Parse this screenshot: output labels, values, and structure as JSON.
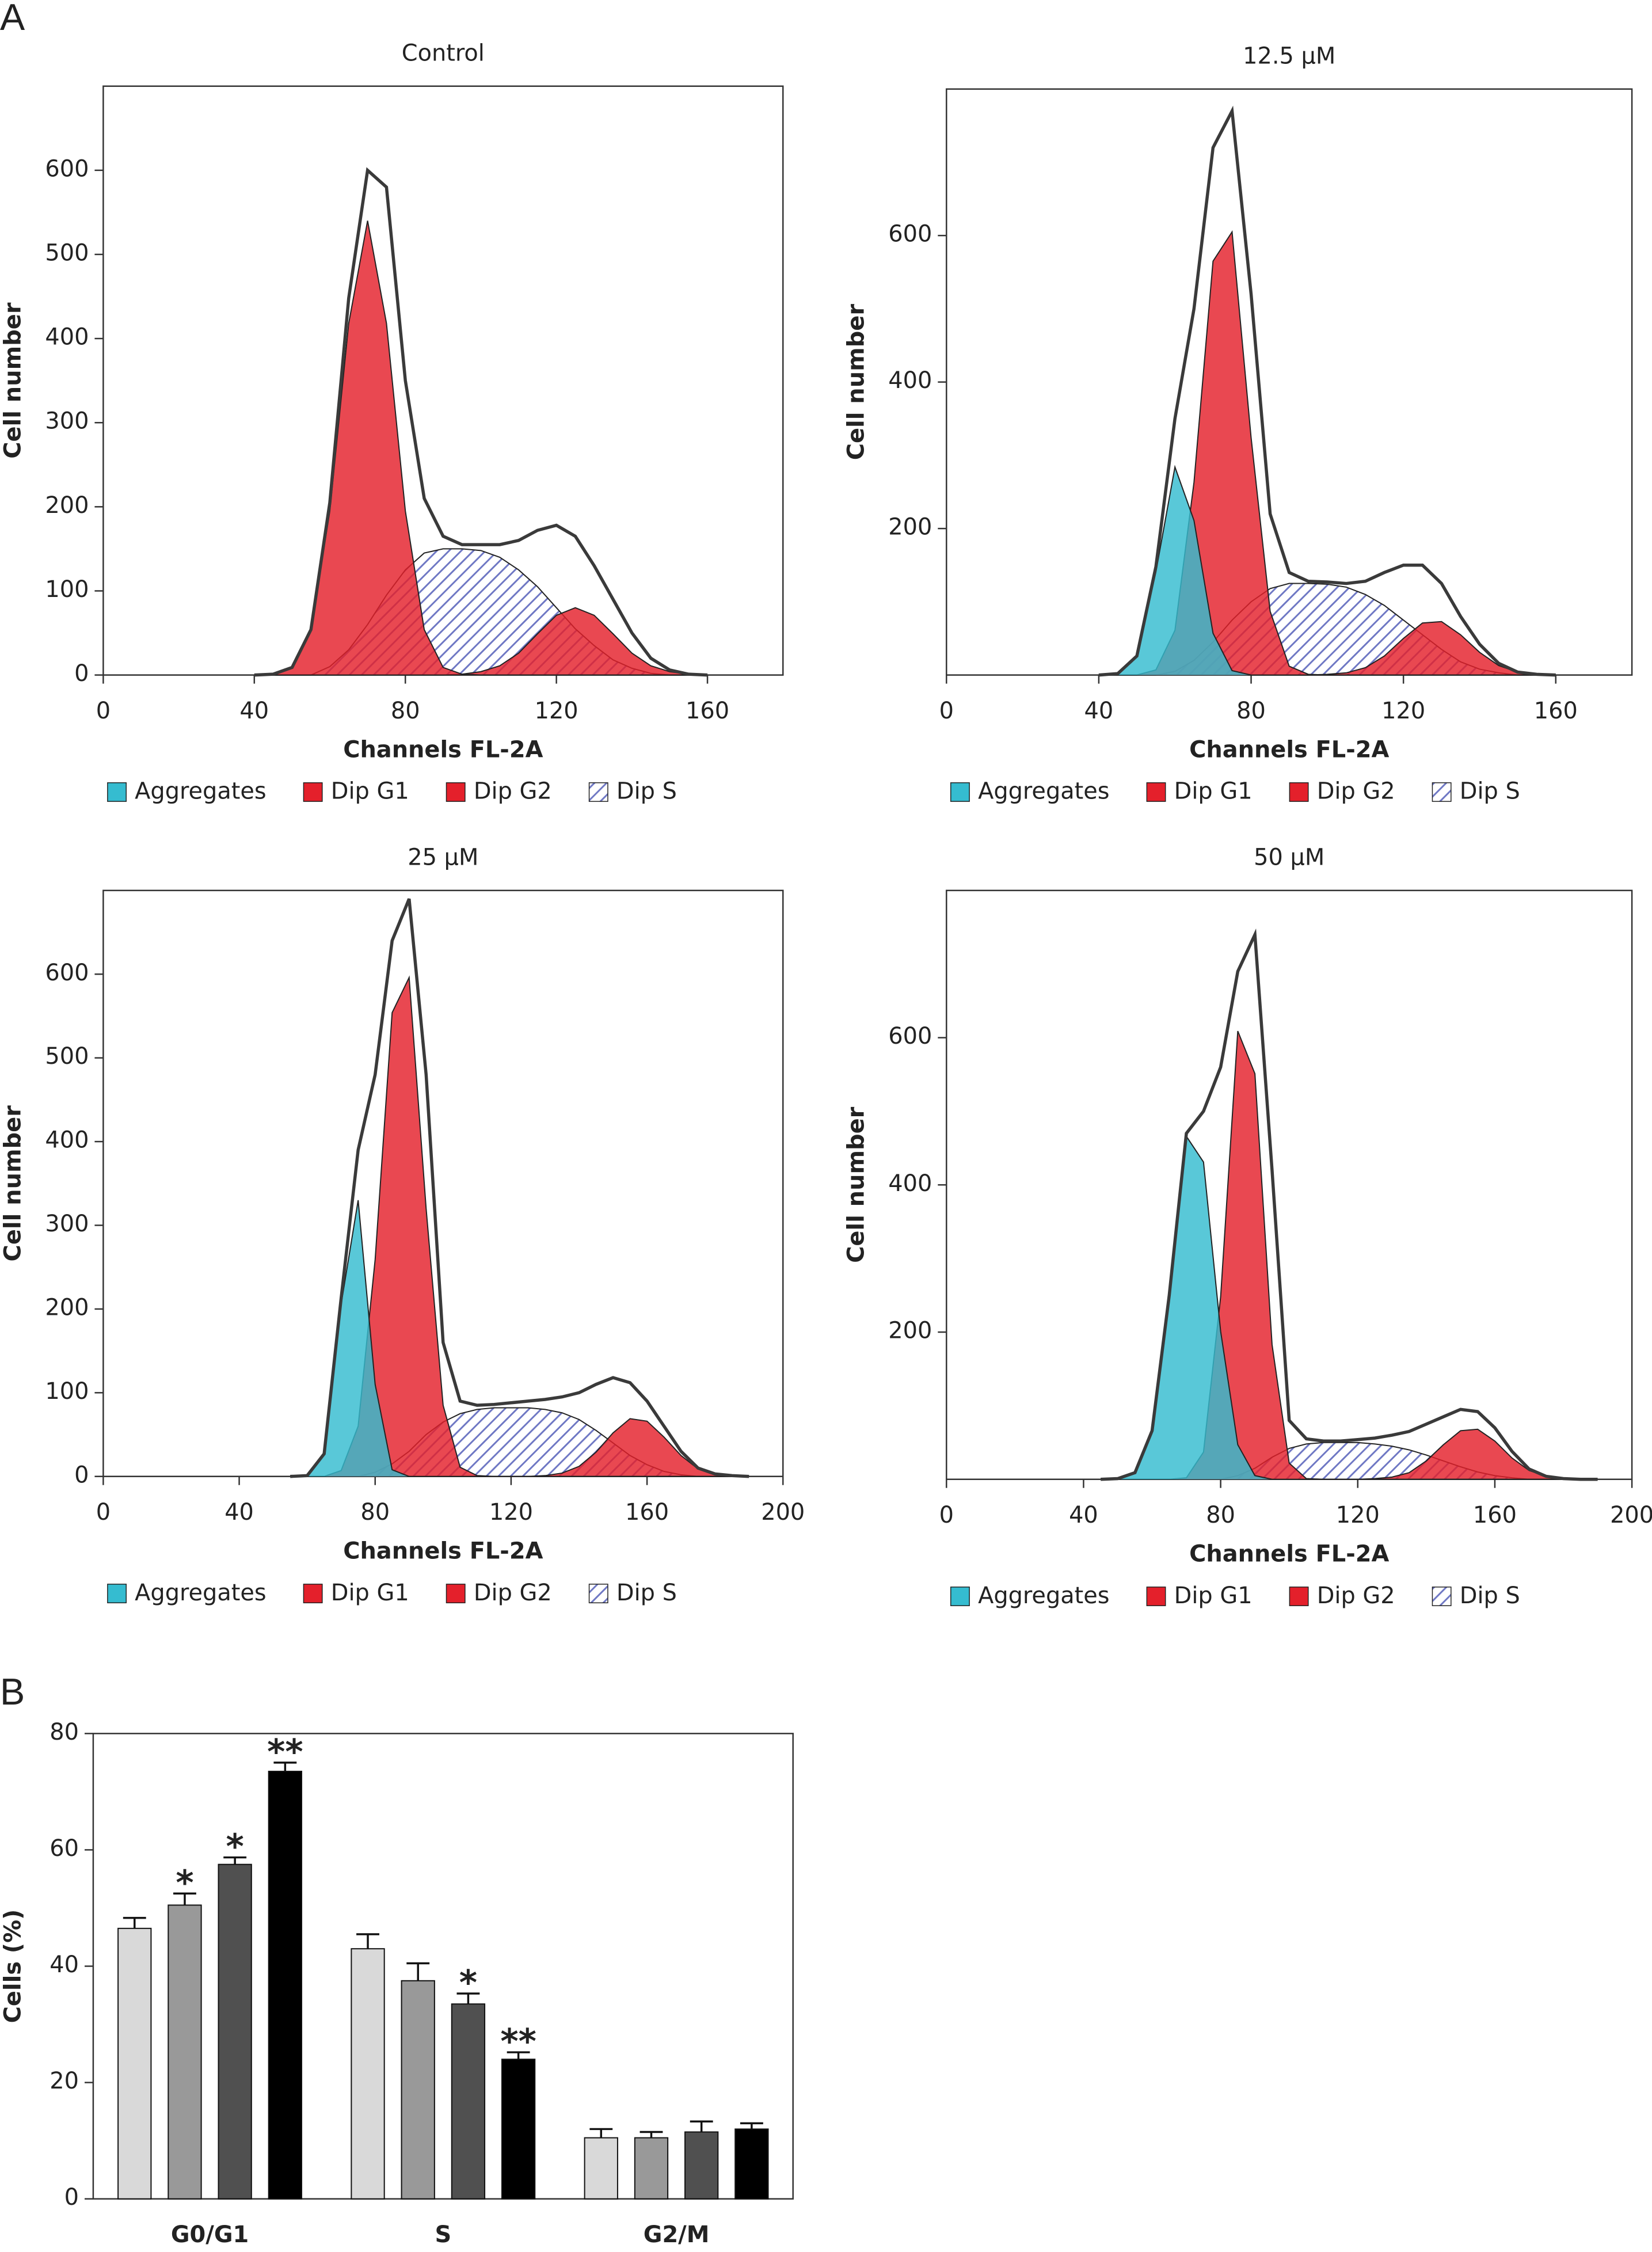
{
  "panel_labels": [
    "A",
    "B"
  ],
  "chart_data": [
    {
      "type": "flow",
      "title": "Control",
      "xlabel": "Channels FL-2A",
      "ylabel": "Cell number",
      "xlim": [
        0,
        180
      ],
      "xticks": [
        0,
        40,
        80,
        120,
        160
      ],
      "ylim": [
        0,
        700
      ],
      "yticks": [
        0,
        100,
        200,
        300,
        400,
        500,
        600
      ],
      "x": [
        40,
        45,
        50,
        55,
        60,
        65,
        70,
        75,
        80,
        85,
        90,
        95,
        100,
        105,
        110,
        115,
        120,
        125,
        130,
        135,
        140,
        145,
        150,
        155,
        160
      ],
      "series": [
        {
          "name": "Aggregates",
          "color": "#35bcd0",
          "mark": "area",
          "values": [
            0,
            0,
            0,
            0,
            0,
            0,
            0,
            0,
            0,
            0,
            0,
            0,
            0,
            0,
            0,
            0,
            0,
            0,
            0,
            0,
            0,
            0,
            0,
            0,
            0
          ]
        },
        {
          "name": "Dip G1",
          "color": "#e4202b",
          "mark": "area",
          "values": [
            0,
            1,
            9,
            54,
            195,
            418,
            540,
            418,
            195,
            54,
            9,
            1,
            0,
            0,
            0,
            0,
            0,
            0,
            0,
            0,
            0,
            0,
            0,
            0,
            0
          ]
        },
        {
          "name": "Dip G2",
          "color": "#e4202b",
          "mark": "area",
          "values": [
            0,
            0,
            0,
            0,
            0,
            0,
            0,
            0,
            0,
            0,
            0,
            1,
            4,
            11,
            26,
            49,
            71,
            80,
            71,
            49,
            26,
            11,
            4,
            1,
            0
          ]
        },
        {
          "name": "Dip S",
          "color": "#6f78c4",
          "mark": "hatch",
          "values": [
            0,
            0,
            0,
            0,
            10,
            30,
            60,
            95,
            125,
            145,
            150,
            150,
            148,
            140,
            125,
            105,
            80,
            55,
            35,
            18,
            8,
            2,
            0,
            0,
            0
          ]
        },
        {
          "color": "#3a3a3a",
          "mark": "line",
          "values": [
            0,
            1,
            9,
            54,
            205,
            448,
            600,
            580,
            350,
            210,
            165,
            155,
            155,
            155,
            160,
            172,
            178,
            165,
            130,
            90,
            50,
            20,
            6,
            1,
            0
          ]
        }
      ]
    },
    {
      "type": "flow",
      "title": "12.5 µM",
      "xlabel": "Channels FL-2A",
      "ylabel": "Cell number",
      "xlim": [
        0,
        180
      ],
      "xticks": [
        0,
        40,
        80,
        120,
        160
      ],
      "ylim": [
        0,
        800
      ],
      "yticks": [
        200,
        400,
        600
      ],
      "x": [
        40,
        45,
        50,
        55,
        60,
        65,
        70,
        75,
        80,
        85,
        90,
        95,
        100,
        105,
        110,
        115,
        120,
        125,
        130,
        135,
        140,
        145,
        150,
        155,
        160
      ],
      "series": [
        {
          "name": "Aggregates",
          "color": "#35bcd0",
          "mark": "area",
          "values": [
            0,
            2,
            26,
            141,
            284,
            211,
            57,
            6,
            0,
            0,
            0,
            0,
            0,
            0,
            0,
            0,
            0,
            0,
            0,
            0,
            0,
            0,
            0,
            0,
            0
          ]
        },
        {
          "name": "Dip G1",
          "color": "#e4202b",
          "mark": "area",
          "values": [
            0,
            0,
            0,
            7,
            61,
            263,
            565,
            605,
            324,
            87,
            12,
            1,
            0,
            0,
            0,
            0,
            0,
            0,
            0,
            0,
            0,
            0,
            0,
            0,
            0
          ]
        },
        {
          "name": "Dip G2",
          "color": "#e4202b",
          "mark": "area",
          "values": [
            0,
            0,
            0,
            0,
            0,
            0,
            0,
            0,
            0,
            0,
            0,
            0,
            1,
            3,
            10,
            26,
            50,
            71,
            73,
            55,
            31,
            13,
            4,
            1,
            0
          ]
        },
        {
          "name": "Dip S",
          "color": "#6f78c4",
          "mark": "hatch",
          "values": [
            0,
            0,
            0,
            0,
            5,
            20,
            45,
            75,
            100,
            118,
            125,
            125,
            124,
            120,
            110,
            95,
            75,
            55,
            35,
            18,
            8,
            3,
            0,
            0,
            0
          ]
        },
        {
          "color": "#3a3a3a",
          "mark": "line",
          "values": [
            0,
            2,
            26,
            148,
            350,
            500,
            720,
            770,
            520,
            220,
            140,
            128,
            127,
            125,
            128,
            140,
            150,
            150,
            125,
            80,
            42,
            16,
            4,
            1,
            0
          ]
        }
      ]
    },
    {
      "type": "flow",
      "title": "25 µM",
      "xlabel": "Channels FL-2A",
      "ylabel": "Cell number",
      "xlim": [
        0,
        200
      ],
      "xticks": [
        0,
        40,
        80,
        120,
        160,
        200
      ],
      "ylim": [
        0,
        700
      ],
      "yticks": [
        0,
        100,
        200,
        300,
        400,
        500,
        600
      ],
      "x": [
        55,
        60,
        65,
        70,
        75,
        80,
        85,
        90,
        95,
        100,
        105,
        110,
        115,
        120,
        125,
        130,
        135,
        140,
        145,
        150,
        155,
        160,
        165,
        170,
        175,
        180,
        185,
        190
      ],
      "series": [
        {
          "name": "Aggregates",
          "color": "#35bcd0",
          "mark": "area",
          "values": [
            0,
            1,
            27,
            206,
            330,
            110,
            8,
            0,
            0,
            0,
            0,
            0,
            0,
            0,
            0,
            0,
            0,
            0,
            0,
            0,
            0,
            0,
            0,
            0,
            0,
            0,
            0,
            0
          ]
        },
        {
          "name": "Dip G1",
          "color": "#e4202b",
          "mark": "area",
          "values": [
            0,
            0,
            0,
            7,
            60,
            259,
            554,
            596,
            320,
            85,
            11,
            1,
            0,
            0,
            0,
            0,
            0,
            0,
            0,
            0,
            0,
            0,
            0,
            0,
            0,
            0,
            0,
            0
          ]
        },
        {
          "name": "Dip G2",
          "color": "#e4202b",
          "mark": "area",
          "values": [
            0,
            0,
            0,
            0,
            0,
            0,
            0,
            0,
            0,
            0,
            0,
            0,
            0,
            0,
            0,
            1,
            4,
            12,
            29,
            52,
            69,
            66,
            47,
            25,
            9,
            3,
            1,
            0
          ]
        },
        {
          "name": "Dip S",
          "color": "#6f78c4",
          "mark": "hatch",
          "values": [
            0,
            0,
            0,
            0,
            0,
            5,
            15,
            30,
            50,
            65,
            75,
            80,
            82,
            82,
            82,
            80,
            76,
            68,
            55,
            40,
            25,
            14,
            6,
            2,
            0,
            0,
            0,
            0
          ]
        },
        {
          "color": "#3a3a3a",
          "mark": "line",
          "values": [
            0,
            1,
            27,
            213,
            390,
            480,
            640,
            690,
            480,
            160,
            90,
            85,
            86,
            88,
            90,
            92,
            95,
            100,
            110,
            118,
            112,
            90,
            60,
            30,
            10,
            3,
            1,
            0
          ]
        }
      ]
    },
    {
      "type": "flow",
      "title": "50 µM",
      "xlabel": "Channels FL-2A",
      "ylabel": "Cell number",
      "xlim": [
        0,
        200
      ],
      "xticks": [
        0,
        40,
        80,
        120,
        160,
        200
      ],
      "ylim": [
        0,
        800
      ],
      "yticks": [
        200,
        400,
        600
      ],
      "x": [
        45,
        50,
        55,
        60,
        65,
        70,
        75,
        80,
        85,
        90,
        95,
        100,
        105,
        110,
        115,
        120,
        125,
        130,
        135,
        140,
        145,
        150,
        155,
        160,
        165,
        170,
        175,
        180,
        185,
        190
      ],
      "series": [
        {
          "name": "Aggregates",
          "color": "#35bcd0",
          "mark": "area",
          "values": [
            0,
            1,
            9,
            66,
            250,
            466,
            431,
            201,
            47,
            5,
            0,
            0,
            0,
            0,
            0,
            0,
            0,
            0,
            0,
            0,
            0,
            0,
            0,
            0,
            0,
            0,
            0,
            0,
            0,
            0
          ]
        },
        {
          "name": "Dip G1",
          "color": "#e4202b",
          "mark": "area",
          "values": [
            0,
            0,
            0,
            0,
            0,
            2,
            37,
            248,
            609,
            551,
            183,
            22,
            1,
            0,
            0,
            0,
            0,
            0,
            0,
            0,
            0,
            0,
            0,
            0,
            0,
            0,
            0,
            0,
            0,
            0
          ]
        },
        {
          "name": "Dip G2",
          "color": "#e4202b",
          "mark": "area",
          "values": [
            0,
            0,
            0,
            0,
            0,
            0,
            0,
            0,
            0,
            0,
            0,
            0,
            0,
            0,
            0,
            0,
            1,
            3,
            9,
            25,
            47,
            66,
            68,
            52,
            29,
            12,
            4,
            1,
            0,
            0
          ]
        },
        {
          "name": "Dip S",
          "color": "#6f78c4",
          "mark": "hatch",
          "values": [
            0,
            0,
            0,
            0,
            0,
            0,
            0,
            0,
            5,
            15,
            30,
            42,
            48,
            50,
            50,
            50,
            48,
            45,
            40,
            33,
            25,
            17,
            10,
            5,
            2,
            0,
            0,
            0,
            0,
            0
          ]
        },
        {
          "color": "#3a3a3a",
          "mark": "line",
          "values": [
            0,
            1,
            9,
            66,
            250,
            470,
            500,
            560,
            690,
            740,
            420,
            80,
            55,
            52,
            52,
            54,
            56,
            60,
            65,
            75,
            85,
            95,
            92,
            70,
            38,
            14,
            4,
            1,
            0,
            0
          ]
        }
      ]
    },
    {
      "type": "bar",
      "ylabel": "Cells (%)",
      "categories": [
        "G0/G1",
        "S",
        "G2/M"
      ],
      "ylim": [
        0,
        80
      ],
      "yticks": [
        0,
        20,
        40,
        60,
        80
      ],
      "series": [
        {
          "color": "#d9d9d9",
          "values": [
            46.5,
            43,
            10.5
          ],
          "errors": [
            1.8,
            2.5,
            1.5
          ],
          "annotations": [
            null,
            null,
            null
          ]
        },
        {
          "color": "#999999",
          "values": [
            50.5,
            37.5,
            10.5
          ],
          "errors": [
            2,
            3,
            1
          ],
          "annotations": [
            "*",
            null,
            null
          ]
        },
        {
          "color": "#505050",
          "values": [
            57.5,
            33.5,
            11.5
          ],
          "errors": [
            1.2,
            1.8,
            1.8
          ],
          "annotations": [
            "*",
            "*",
            null
          ]
        },
        {
          "color": "#000000",
          "values": [
            73.5,
            24,
            12
          ],
          "errors": [
            1.5,
            1.2,
            1
          ],
          "annotations": [
            "**",
            "**",
            null
          ]
        }
      ]
    }
  ]
}
